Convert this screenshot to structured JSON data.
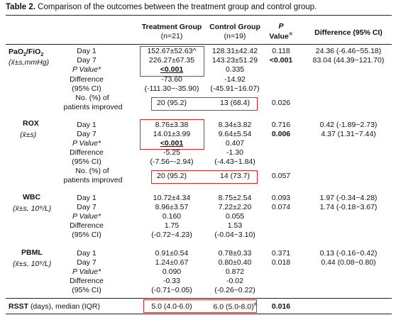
{
  "title": {
    "label": "Table 2.",
    "text": "Comparison of the outcomes between the treatment group and control group."
  },
  "header": {
    "treatment": "Treatment Group",
    "treatment_n": "(n=21)",
    "control": "Control Group",
    "control_n": "(n=19)",
    "p": "P",
    "p_value": "Value",
    "p_mark": "※",
    "diff": "Difference (95% CI)"
  },
  "pf": {
    "name_main": "PaO",
    "name_sub1": "2",
    "name_mid": "/FiO",
    "name_sub2": "2",
    "unit": "(x̄±s,mmHg)",
    "day1": "Day 1",
    "day7": "Day 7",
    "pval_label": "P Value*",
    "diff_label": "Difference",
    "ci_label": "(95% CI)",
    "no_label": "No. (%) of",
    "improved_label": "patients improved",
    "t_day1": "152.67±52.63^",
    "t_day7": "226.27±67.35",
    "t_p": "<0.001",
    "t_diff": "-73.60",
    "t_ci": "(-111.30~-35.90)",
    "t_improved": "20 (95.2)",
    "c_day1": "128.31±42.42",
    "c_day7": "143.23±51.29",
    "c_p": "0.335",
    "c_diff": "-14.92",
    "c_ci": "(-45.91~16.07)",
    "c_improved": "13 (68.4)",
    "p_day1": "0.118",
    "p_day7": "<0.001",
    "p_improved": "0.026",
    "d_day1": "24.36 (-6.46~55.18)",
    "d_day7": "83.04 (44.39~121.70)"
  },
  "rox": {
    "name": "ROX",
    "unit": "(x̄±s)",
    "day1": "Day 1",
    "day7": "Day 7",
    "pval_label": "P Value*",
    "diff_label": "Difference",
    "ci_label": "(95% CI)",
    "no_label": "No. (%) of",
    "improved_label": "patients improved",
    "t_day1": "8.76±3.38",
    "t_day7": "14.01±3.99",
    "t_p": "<0.001",
    "t_diff": "-5.25",
    "t_ci": "(-7.56~-2.94)",
    "t_improved": "20 (95.2)",
    "c_day1": "8.34±3.82",
    "c_day7": "9.64±5.54",
    "c_p": "0.407",
    "c_diff": "-1.30",
    "c_ci": "(-4.43~1.84)",
    "c_improved": "14 (73.7)",
    "p_day1": "0.716",
    "p_day7": "0.006",
    "p_improved": "0.057",
    "d_day1": "0.42 (-1.89~2.73)",
    "d_day7": "4.37 (1.31~7.44)"
  },
  "wbc": {
    "name": "WBC",
    "unit": "(x̄±s, 10⁹/L)",
    "day1": "Day 1",
    "day7": "Day 7",
    "pval_label": "P Value*",
    "diff_label": "Difference",
    "ci_label": "(95% CI)",
    "t_day1": "10.72±4.34",
    "t_day7": "8.96±3.57",
    "t_p": "0.160",
    "t_diff": "1.75",
    "t_ci": "(-0.72~4.23)",
    "c_day1": "8.75±2.54",
    "c_day7": "7.22±2.20",
    "c_p": "0.055",
    "c_diff": "1.53",
    "c_ci": "(-0.04~3.10)",
    "p_day1": "0.093",
    "p_day7": "0.074",
    "d_day1": "1.97 (-0.34~4.28)",
    "d_day7": "1.74 (-0.18~3.67)"
  },
  "pbml": {
    "name": "PBML",
    "unit": "(x̄±s, 10⁹/L)",
    "day1": "Day 1",
    "day7": "Day 7",
    "pval_label": "P Value*",
    "diff_label": "Difference",
    "ci_label": "(95% CI)",
    "t_day1": "0.91±0.54",
    "t_day7": "1.24±0.67",
    "t_p": "0.090",
    "t_diff": "-0.33",
    "t_ci": "(-0.71~0.05)",
    "c_day1": "0.78±0.33",
    "c_day7": "0.80±0.40",
    "c_p": "0.872",
    "c_diff": "-0.02",
    "c_ci": "(-0.26~0.22)",
    "p_day1": "0.371",
    "p_day7": "0.018",
    "d_day1": "0.13 (-0.16~0.42)",
    "d_day7": "0.44 (0.08~0.80)"
  },
  "rsst": {
    "name": "RSST",
    "label_rest": "(days), median (IQR)",
    "t_value": "5.0 (4.0-6.0)",
    "c_value": "6.0 (5.0-8.0)",
    "c_mark": "#",
    "p_value": "0.016"
  },
  "colors": {
    "highlight_box": "#e0262a",
    "rule": "#222222"
  }
}
